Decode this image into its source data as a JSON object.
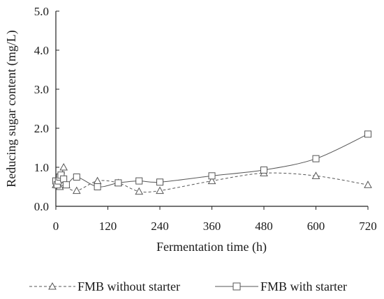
{
  "chart_data": {
    "type": "line",
    "title": "",
    "xlabel": "Fermentation time (h)",
    "ylabel": "Reducing sugar content (mg/L)",
    "xlim": [
      0,
      720
    ],
    "ylim": [
      0,
      5
    ],
    "xticks": [
      0,
      120,
      240,
      360,
      480,
      600,
      720
    ],
    "yticks": [
      0.0,
      1.0,
      2.0,
      3.0,
      4.0,
      5.0
    ],
    "xtick_labels": [
      "0",
      "120",
      "240",
      "360",
      "480",
      "600",
      "720"
    ],
    "ytick_labels": [
      "0.0",
      "1.0",
      "2.0",
      "3.0",
      "4.0",
      "5.0"
    ],
    "grid": false,
    "legend_position": "bottom",
    "series": [
      {
        "name": "FMB without starter",
        "marker": "triangle",
        "line_style": "dashed",
        "color": "#555555",
        "x": [
          0,
          3,
          6,
          9,
          12,
          18,
          24,
          48,
          96,
          144,
          192,
          240,
          360,
          480,
          600,
          720
        ],
        "y": [
          0.55,
          0.6,
          0.7,
          0.5,
          0.6,
          1.0,
          0.55,
          0.4,
          0.65,
          0.6,
          0.38,
          0.4,
          0.65,
          0.85,
          0.78,
          0.55
        ]
      },
      {
        "name": "FMB with starter",
        "marker": "square",
        "line_style": "solid",
        "color": "#555555",
        "x": [
          0,
          3,
          6,
          9,
          12,
          18,
          24,
          48,
          96,
          144,
          192,
          240,
          360,
          480,
          600,
          720
        ],
        "y": [
          0.65,
          0.55,
          0.65,
          0.75,
          0.8,
          0.7,
          0.55,
          0.75,
          0.5,
          0.6,
          0.65,
          0.62,
          0.78,
          0.93,
          1.22,
          1.85
        ]
      }
    ]
  }
}
